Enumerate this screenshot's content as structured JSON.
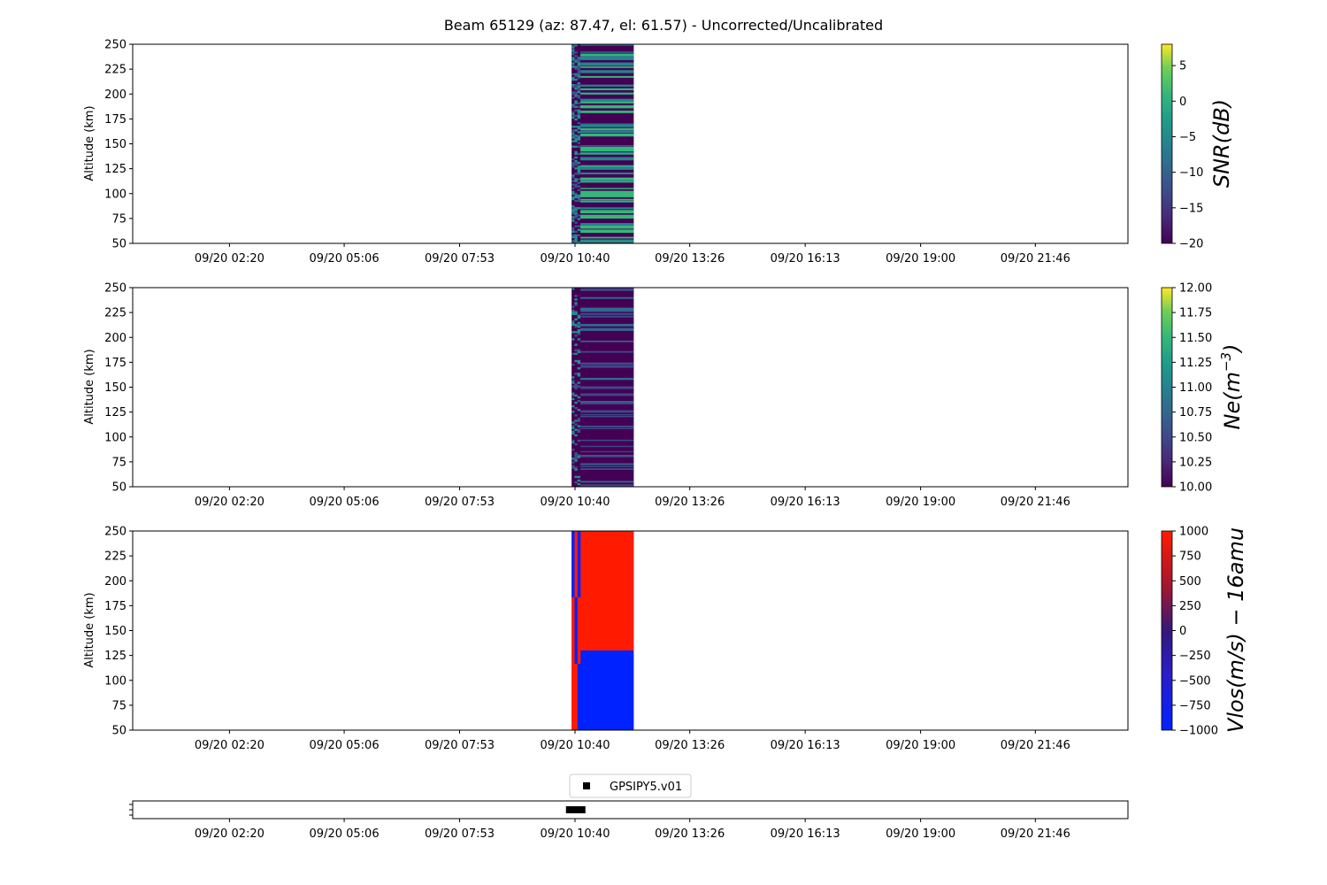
{
  "title": "Beam 65129 (az: 87.47, el: 61.57) - Uncorrected/Uncalibrated",
  "chart_data": [
    {
      "type": "heatmap",
      "panel": "snr",
      "ylabel": "Altitude (km)",
      "ylim": [
        50,
        250
      ],
      "yticks": [
        50,
        75,
        100,
        125,
        150,
        175,
        200,
        225,
        250
      ],
      "xlabels": [
        "09/20 02:20",
        "09/20 05:06",
        "09/20 07:53",
        "09/20 10:40",
        "09/20 13:26",
        "09/20 16:13",
        "09/20 19:00",
        "09/20 21:46"
      ],
      "data_time_range": [
        "09/20 10:35",
        "09/20 12:05"
      ],
      "colormap": "viridis",
      "colorbar": {
        "label": "SNR(dB)",
        "min": -20,
        "max": 8,
        "ticks": [
          -20,
          -15,
          -10,
          -5,
          0,
          5
        ]
      },
      "pattern": "mostly low (~-20 dB) with intermittent horizontal bands of higher SNR (~-5 dB)"
    },
    {
      "type": "heatmap",
      "panel": "ne",
      "ylabel": "Altitude (km)",
      "ylim": [
        50,
        250
      ],
      "yticks": [
        50,
        75,
        100,
        125,
        150,
        175,
        200,
        225,
        250
      ],
      "xlabels": [
        "09/20 02:20",
        "09/20 05:06",
        "09/20 07:53",
        "09/20 10:40",
        "09/20 13:26",
        "09/20 16:13",
        "09/20 19:00",
        "09/20 21:46"
      ],
      "data_time_range": [
        "09/20 10:35",
        "09/20 12:05"
      ],
      "colormap": "viridis",
      "colorbar": {
        "label_base": "Ne(m",
        "label_exp": "−3",
        "label_tail": ")",
        "min": 10.0,
        "max": 12.0,
        "ticks": [
          "10.00",
          "10.25",
          "10.50",
          "10.75",
          "11.00",
          "11.25",
          "11.50",
          "11.75",
          "12.00"
        ]
      },
      "pattern": "mostly ~10.0 with sparse horizontal bands ~10.9"
    },
    {
      "type": "heatmap",
      "panel": "vlos",
      "ylabel": "Altitude (km)",
      "ylim": [
        50,
        250
      ],
      "yticks": [
        50,
        75,
        100,
        125,
        150,
        175,
        200,
        225,
        250
      ],
      "xlabels": [
        "09/20 02:20",
        "09/20 05:06",
        "09/20 07:53",
        "09/20 10:40",
        "09/20 13:26",
        "09/20 16:13",
        "09/20 19:00",
        "09/20 21:46"
      ],
      "data_time_range": [
        "09/20 10:35",
        "09/20 12:05"
      ],
      "colormap": "bwr (blue-red)",
      "colorbar": {
        "label": "Vlos(m/s) − 16amu",
        "min": -1000,
        "max": 1000,
        "ticks": [
          -1000,
          -750,
          -500,
          -250,
          0,
          250,
          500,
          750,
          1000
        ]
      },
      "regions": [
        {
          "alt_range": [
            130,
            250
          ],
          "value": 1000
        },
        {
          "alt_range": [
            50,
            130
          ],
          "value": -1000
        }
      ]
    },
    {
      "type": "scatter",
      "panel": "timeline",
      "xlabels": [
        "09/20 02:20",
        "09/20 05:06",
        "09/20 07:53",
        "09/20 10:40",
        "09/20 13:26",
        "09/20 16:13",
        "09/20 19:00",
        "09/20 21:46"
      ],
      "legend": "GPSIPY5.v01",
      "marker_time_range": [
        "09/20 10:32",
        "09/20 10:52"
      ]
    }
  ],
  "colors": {
    "viridis_low": "#440154",
    "viridis_mid": "#3b528b",
    "viridis_teal": "#21918c",
    "viridis_green": "#35b779",
    "viridis_high": "#fde725",
    "vlos_pos": "#ff1a00",
    "vlos_neg": "#0022ff"
  }
}
